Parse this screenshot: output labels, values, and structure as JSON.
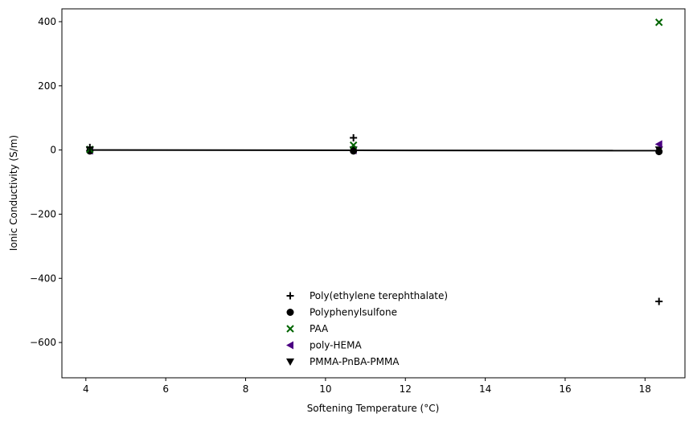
{
  "chart_data": {
    "type": "scatter",
    "xlabel": "Softening Temperature (°C)",
    "ylabel": "Ionic Conductivity (S/m)",
    "xlim": [
      3.4,
      19.0
    ],
    "ylim": [
      -710,
      440
    ],
    "xticks": [
      4,
      6,
      8,
      10,
      12,
      14,
      16,
      18
    ],
    "yticks": [
      400,
      200,
      0,
      -200,
      -400,
      -600
    ],
    "xtick_labels": [
      "4",
      "6",
      "8",
      "10",
      "12",
      "14",
      "16",
      "18"
    ],
    "ytick_labels": [
      "400",
      "200",
      "0",
      "−200",
      "−400",
      "−600"
    ],
    "grid": false,
    "legend_position": "lower-center",
    "series": [
      {
        "name": "Poly(ethylene terephthalate)",
        "marker": "plus",
        "color": "#000000",
        "x": [
          4.1,
          10.7,
          18.35
        ],
        "y": [
          8,
          38,
          -472
        ]
      },
      {
        "name": "Polyphenylsulfone",
        "marker": "circle",
        "color": "#000000",
        "x": [
          4.1,
          10.7,
          18.35
        ],
        "y": [
          -3,
          -3,
          -5
        ]
      },
      {
        "name": "PAA",
        "marker": "x",
        "color": "#006400",
        "x": [
          4.1,
          10.7,
          18.35
        ],
        "y": [
          2,
          15,
          398
        ]
      },
      {
        "name": "poly-HEMA",
        "marker": "triangle-left",
        "color": "#4b0082",
        "x": [
          4.1,
          10.7,
          18.35
        ],
        "y": [
          -2,
          -1,
          18
        ]
      },
      {
        "name": "PMMA-PnBA-PMMA",
        "marker": "triangle-down",
        "color": "#000000",
        "x": [
          4.1,
          10.7,
          18.35
        ],
        "y": [
          1,
          1,
          1
        ]
      }
    ],
    "fit_line": {
      "color": "#000000",
      "x": [
        4.1,
        18.35
      ],
      "y": [
        0,
        -2
      ]
    }
  }
}
